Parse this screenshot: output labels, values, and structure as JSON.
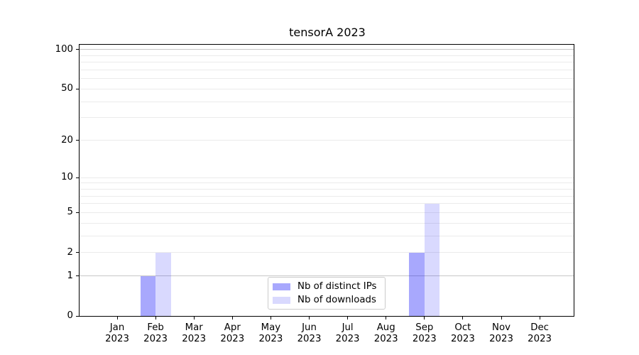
{
  "chart_data": {
    "type": "bar",
    "title": "tensorA 2023",
    "x_categories": [
      {
        "month": "Jan",
        "year": "2023"
      },
      {
        "month": "Feb",
        "year": "2023"
      },
      {
        "month": "Mar",
        "year": "2023"
      },
      {
        "month": "Apr",
        "year": "2023"
      },
      {
        "month": "May",
        "year": "2023"
      },
      {
        "month": "Jun",
        "year": "2023"
      },
      {
        "month": "Jul",
        "year": "2023"
      },
      {
        "month": "Aug",
        "year": "2023"
      },
      {
        "month": "Sep",
        "year": "2023"
      },
      {
        "month": "Oct",
        "year": "2023"
      },
      {
        "month": "Nov",
        "year": "2023"
      },
      {
        "month": "Dec",
        "year": "2023"
      }
    ],
    "series": [
      {
        "name": "Nb of distinct IPs",
        "color": "rgba(0,0,250,0.34)",
        "values": [
          0,
          1,
          0,
          0,
          0,
          0,
          0,
          0,
          2,
          0,
          0,
          0
        ]
      },
      {
        "name": "Nb of downloads",
        "color": "rgba(0,0,250,0.15)",
        "values": [
          0,
          2,
          0,
          0,
          0,
          0,
          0,
          0,
          6,
          0,
          0,
          0
        ]
      }
    ],
    "y_axis": {
      "scale": "log1p",
      "ylim": [
        0,
        109
      ],
      "ticks": [
        0,
        1,
        2,
        5,
        10,
        20,
        50,
        100
      ],
      "minor_gridlines": [
        3,
        4,
        6,
        7,
        8,
        9,
        30,
        40,
        60,
        70,
        80,
        90
      ],
      "emphasized_gridlines": [
        1,
        100
      ]
    },
    "legend": {
      "position": "inside lower-center"
    },
    "colors": {
      "grid": "#ebebeb",
      "grid_emphasis": "#c7c7c7",
      "spine": "#000000",
      "text": "#000000",
      "legend_border": "#cccccc",
      "legend_bg": "rgba(255,255,255,0.8)"
    },
    "grid": "on"
  }
}
